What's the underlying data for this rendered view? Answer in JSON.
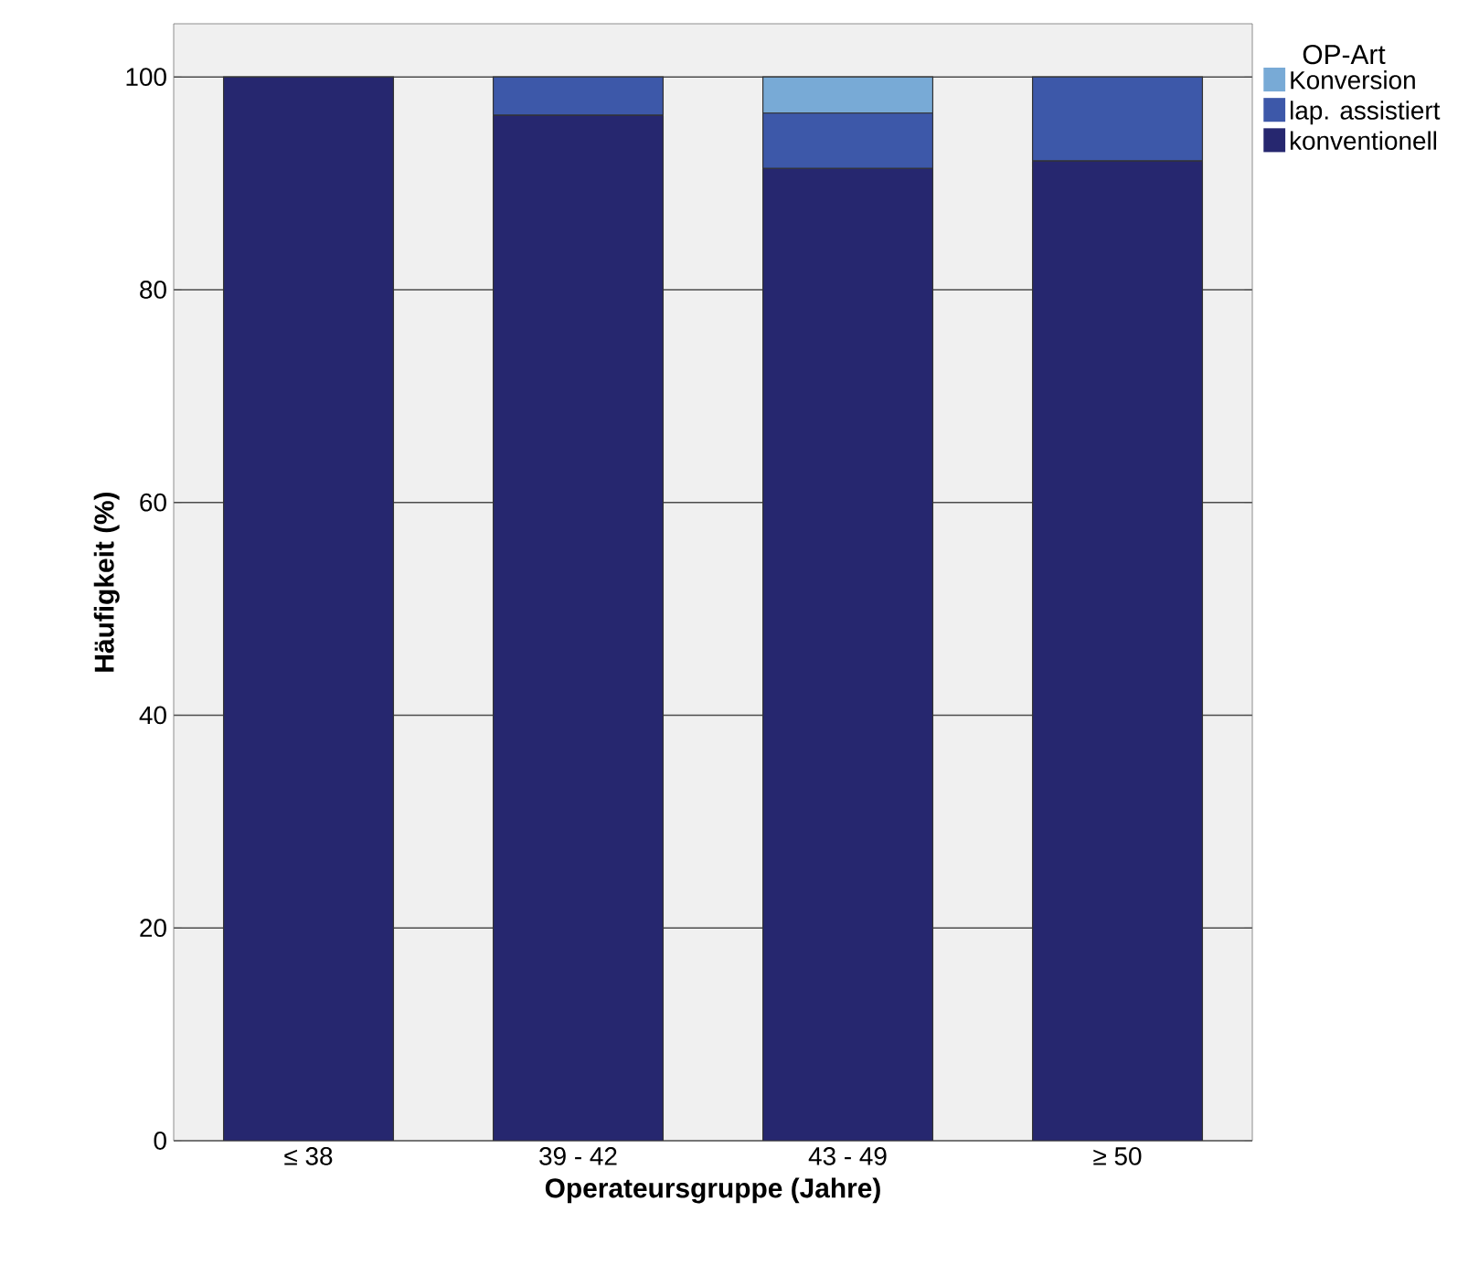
{
  "chart_data": {
    "type": "bar",
    "stacked": true,
    "xlabel": "Operateursgruppe (Jahre)",
    "ylabel": "Häufigkeit (%)",
    "legend_title": "OP-Art",
    "categories": [
      "≤ 38",
      "39 - 42",
      "43 - 49",
      "≥ 50"
    ],
    "series": [
      {
        "name": "konventionell",
        "color": "#26276f",
        "values": [
          100,
          96.4,
          91.4,
          92.1
        ]
      },
      {
        "name": "lap. assistiert",
        "color": "#3d58a9",
        "values": [
          0,
          3.6,
          5.2,
          7.9
        ]
      },
      {
        "name": "Konversion",
        "color": "#78aad6",
        "values": [
          0,
          0,
          3.4,
          0
        ]
      }
    ],
    "ylim": [
      0,
      105
    ],
    "yticks": [
      0,
      20,
      40,
      60,
      80,
      100
    ],
    "grid": "y",
    "legend": "top right"
  }
}
